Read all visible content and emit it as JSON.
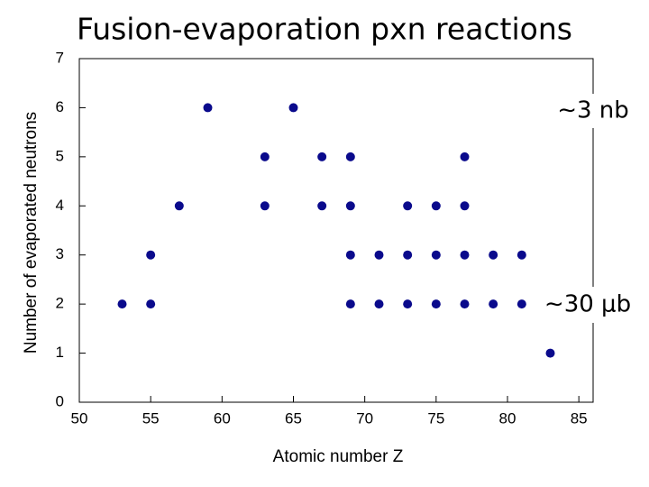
{
  "chart_data": {
    "type": "scatter",
    "title": "Fusion-evaporation pxn reactions",
    "x_label": "Atomic number Z",
    "y_label": "Number of evaporated neutrons",
    "annotations": [
      "∼3 nb",
      "∼30 μb"
    ],
    "color": "#0a0a8c",
    "xlim": [
      50,
      86
    ],
    "xticks": [
      50,
      55,
      60,
      65,
      70,
      75,
      80,
      85
    ],
    "ylim": [
      0,
      7
    ],
    "yticks": [
      0,
      1,
      2,
      3,
      4,
      5,
      6,
      7
    ],
    "x": [
      53,
      55,
      55,
      57,
      59,
      63,
      63,
      65,
      67,
      67,
      69,
      69,
      69,
      69,
      71,
      71,
      73,
      73,
      73,
      75,
      75,
      75,
      77,
      77,
      77,
      77,
      79,
      79,
      81,
      81,
      83
    ],
    "values": [
      2,
      2,
      3,
      4,
      6,
      5,
      4,
      6,
      5,
      4,
      5,
      4,
      3,
      2,
      3,
      2,
      4,
      3,
      2,
      4,
      3,
      2,
      5,
      4,
      3,
      2,
      3,
      2,
      3,
      2,
      1
    ]
  }
}
